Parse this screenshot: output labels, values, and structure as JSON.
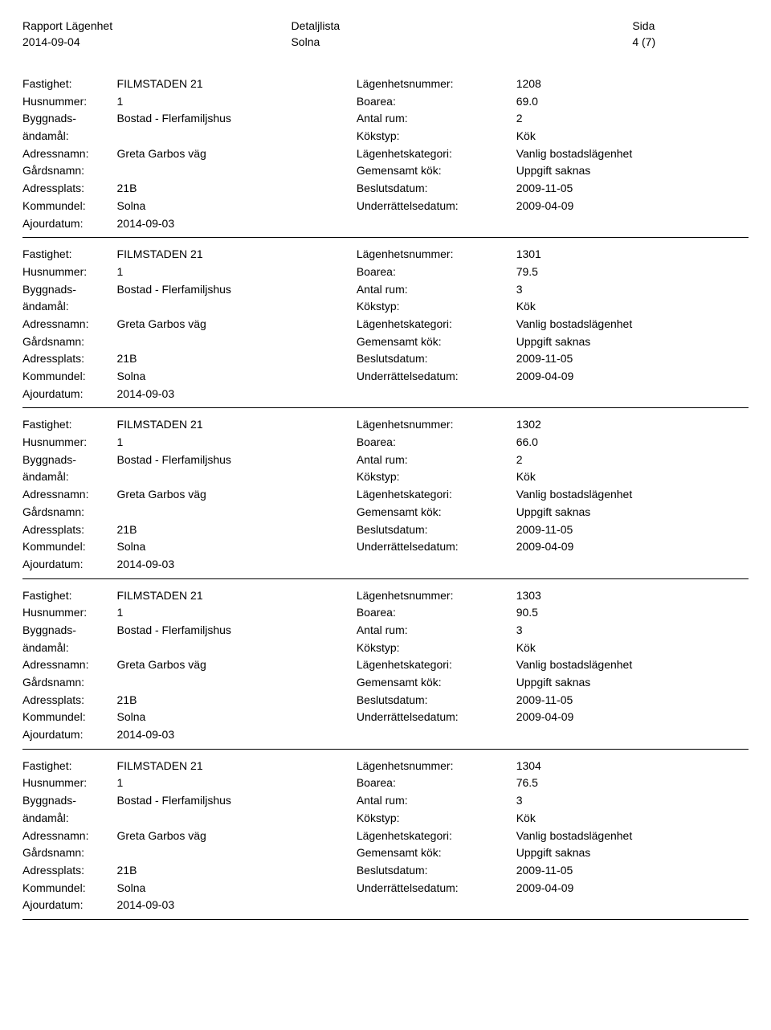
{
  "header": {
    "report_label": "Rapport Lägenhet",
    "list_label": "Detaljlista",
    "page_label": "Sida",
    "date": "2014-09-04",
    "region": "Solna",
    "page_of": "4 (7)"
  },
  "labels": {
    "fastighet": "Fastighet:",
    "husnummer": "Husnummer:",
    "byggnads": "Byggnads-",
    "andamal": "ändamål:",
    "adressnamn": "Adressnamn:",
    "gardsnamn": "Gårdsnamn:",
    "adressplats": "Adressplats:",
    "kommundel": "Kommundel:",
    "ajourdatum": "Ajourdatum:",
    "lagenhetsnummer": "Lägenhetsnummer:",
    "boarea": "Boarea:",
    "antal_rum": "Antal rum:",
    "kokstyp": "Kökstyp:",
    "lagenhetskategori": "Lägenhetskategori:",
    "gemensamt_kok": "Gemensamt kök:",
    "beslutsdatum": "Beslutsdatum:",
    "underrattelsedatum": "Underrättelsedatum:"
  },
  "records": [
    {
      "fastighet": "FILMSTADEN 21",
      "husnummer": "1",
      "byggnadsandamal": "Bostad - Flerfamiljshus",
      "adressnamn": "Greta Garbos väg",
      "gardsnamn": "",
      "adressplats": "21B",
      "kommundel": "Solna",
      "ajourdatum": "2014-09-03",
      "lagenhetsnummer": "1208",
      "boarea": "69.0",
      "antal_rum": "2",
      "kokstyp": "Kök",
      "lagenhetskategori": "Vanlig bostadslägenhet",
      "gemensamt_kok": "Uppgift saknas",
      "beslutsdatum": "2009-11-05",
      "underrattelsedatum": "2009-04-09"
    },
    {
      "fastighet": "FILMSTADEN 21",
      "husnummer": "1",
      "byggnadsandamal": "Bostad - Flerfamiljshus",
      "adressnamn": "Greta Garbos väg",
      "gardsnamn": "",
      "adressplats": "21B",
      "kommundel": "Solna",
      "ajourdatum": "2014-09-03",
      "lagenhetsnummer": "1301",
      "boarea": "79.5",
      "antal_rum": "3",
      "kokstyp": "Kök",
      "lagenhetskategori": "Vanlig bostadslägenhet",
      "gemensamt_kok": "Uppgift saknas",
      "beslutsdatum": "2009-11-05",
      "underrattelsedatum": "2009-04-09"
    },
    {
      "fastighet": "FILMSTADEN 21",
      "husnummer": "1",
      "byggnadsandamal": "Bostad - Flerfamiljshus",
      "adressnamn": "Greta Garbos väg",
      "gardsnamn": "",
      "adressplats": "21B",
      "kommundel": "Solna",
      "ajourdatum": "2014-09-03",
      "lagenhetsnummer": "1302",
      "boarea": "66.0",
      "antal_rum": "2",
      "kokstyp": "Kök",
      "lagenhetskategori": "Vanlig bostadslägenhet",
      "gemensamt_kok": "Uppgift saknas",
      "beslutsdatum": "2009-11-05",
      "underrattelsedatum": "2009-04-09"
    },
    {
      "fastighet": "FILMSTADEN 21",
      "husnummer": "1",
      "byggnadsandamal": "Bostad - Flerfamiljshus",
      "adressnamn": "Greta Garbos väg",
      "gardsnamn": "",
      "adressplats": "21B",
      "kommundel": "Solna",
      "ajourdatum": "2014-09-03",
      "lagenhetsnummer": "1303",
      "boarea": "90.5",
      "antal_rum": "3",
      "kokstyp": "Kök",
      "lagenhetskategori": "Vanlig bostadslägenhet",
      "gemensamt_kok": "Uppgift saknas",
      "beslutsdatum": "2009-11-05",
      "underrattelsedatum": "2009-04-09"
    },
    {
      "fastighet": "FILMSTADEN 21",
      "husnummer": "1",
      "byggnadsandamal": "Bostad - Flerfamiljshus",
      "adressnamn": "Greta Garbos väg",
      "gardsnamn": "",
      "adressplats": "21B",
      "kommundel": "Solna",
      "ajourdatum": "2014-09-03",
      "lagenhetsnummer": "1304",
      "boarea": "76.5",
      "antal_rum": "3",
      "kokstyp": "Kök",
      "lagenhetskategori": "Vanlig bostadslägenhet",
      "gemensamt_kok": "Uppgift saknas",
      "beslutsdatum": "2009-11-05",
      "underrattelsedatum": "2009-04-09"
    }
  ]
}
